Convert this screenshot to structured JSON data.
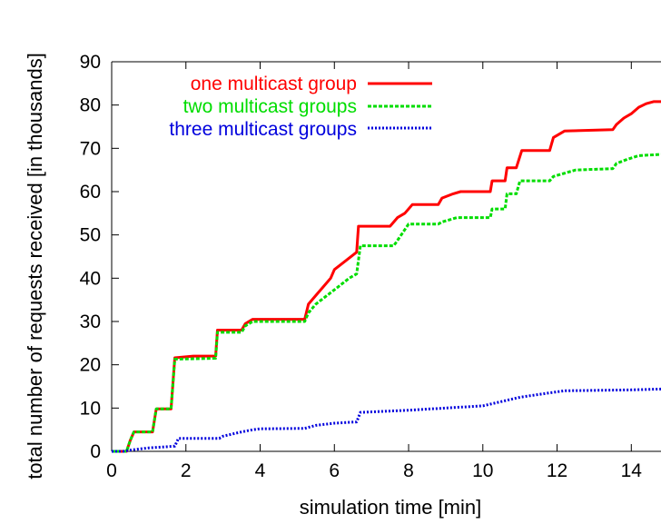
{
  "chart_data": {
    "type": "line",
    "title": "",
    "xlabel": "simulation time [min]",
    "ylabel": "total number of requests received [in thousands]",
    "xlim": [
      0,
      14.8
    ],
    "ylim": [
      0,
      90
    ],
    "xticks": [
      0,
      2,
      4,
      6,
      8,
      10,
      12,
      14
    ],
    "yticks": [
      0,
      10,
      20,
      30,
      40,
      50,
      60,
      70,
      80,
      90
    ],
    "grid": false,
    "legend_position": "top-left",
    "series": [
      {
        "name": "one multicast group",
        "color": "#ff0000",
        "style": "solid",
        "points": [
          [
            0,
            0
          ],
          [
            0.4,
            0
          ],
          [
            0.5,
            2.5
          ],
          [
            0.6,
            4.5
          ],
          [
            1.1,
            4.5
          ],
          [
            1.2,
            9.8
          ],
          [
            1.6,
            9.8
          ],
          [
            1.7,
            21.6
          ],
          [
            1.8,
            21.7
          ],
          [
            2.2,
            22
          ],
          [
            2.8,
            22
          ],
          [
            2.85,
            28
          ],
          [
            3.5,
            28
          ],
          [
            3.6,
            29.5
          ],
          [
            3.8,
            30.5
          ],
          [
            5.2,
            30.5
          ],
          [
            5.3,
            34
          ],
          [
            5.5,
            36
          ],
          [
            5.7,
            38
          ],
          [
            5.9,
            40
          ],
          [
            6.0,
            42
          ],
          [
            6.3,
            44
          ],
          [
            6.6,
            46
          ],
          [
            6.65,
            52
          ],
          [
            7.5,
            52
          ],
          [
            7.7,
            54
          ],
          [
            7.9,
            55
          ],
          [
            8.1,
            57
          ],
          [
            8.8,
            57
          ],
          [
            8.9,
            58.5
          ],
          [
            9.2,
            59.5
          ],
          [
            9.4,
            60
          ],
          [
            10.2,
            60
          ],
          [
            10.25,
            62.5
          ],
          [
            10.6,
            62.5
          ],
          [
            10.65,
            65.5
          ],
          [
            10.9,
            65.5
          ],
          [
            11.05,
            69.5
          ],
          [
            11.8,
            69.5
          ],
          [
            11.9,
            72.5
          ],
          [
            12.2,
            74
          ],
          [
            13.5,
            74.3
          ],
          [
            13.6,
            75.5
          ],
          [
            13.8,
            77
          ],
          [
            14.0,
            78
          ],
          [
            14.2,
            79.5
          ],
          [
            14.4,
            80.3
          ],
          [
            14.6,
            80.8
          ],
          [
            14.8,
            80.8
          ]
        ]
      },
      {
        "name": "two multicast groups",
        "color": "#00dd00",
        "style": "dashed",
        "points": [
          [
            0,
            0
          ],
          [
            0.4,
            0
          ],
          [
            0.5,
            2.5
          ],
          [
            0.6,
            4.5
          ],
          [
            1.1,
            4.5
          ],
          [
            1.2,
            9.8
          ],
          [
            1.6,
            9.8
          ],
          [
            1.7,
            21.3
          ],
          [
            2.8,
            21.5
          ],
          [
            2.85,
            27.5
          ],
          [
            3.5,
            27.5
          ],
          [
            3.6,
            29
          ],
          [
            3.8,
            30
          ],
          [
            5.2,
            30
          ],
          [
            5.3,
            32
          ],
          [
            5.5,
            34
          ],
          [
            5.8,
            36
          ],
          [
            6.1,
            38
          ],
          [
            6.4,
            40
          ],
          [
            6.6,
            41
          ],
          [
            6.7,
            47.5
          ],
          [
            7.6,
            47.5
          ],
          [
            7.8,
            50
          ],
          [
            8.0,
            52.5
          ],
          [
            8.8,
            52.5
          ],
          [
            8.9,
            53
          ],
          [
            9.3,
            54
          ],
          [
            10.2,
            54
          ],
          [
            10.25,
            56
          ],
          [
            10.6,
            56
          ],
          [
            10.65,
            59.5
          ],
          [
            10.9,
            59.5
          ],
          [
            11.0,
            62.5
          ],
          [
            11.8,
            62.5
          ],
          [
            11.9,
            63.5
          ],
          [
            12.5,
            65
          ],
          [
            13.5,
            65.3
          ],
          [
            13.6,
            66.5
          ],
          [
            13.9,
            67.5
          ],
          [
            14.2,
            68.3
          ],
          [
            14.8,
            68.6
          ]
        ]
      },
      {
        "name": "three multicast groups",
        "color": "#0000dd",
        "style": "dotted",
        "points": [
          [
            0,
            0
          ],
          [
            0.3,
            0
          ],
          [
            0.5,
            0.3
          ],
          [
            1.0,
            0.8
          ],
          [
            1.7,
            1.2
          ],
          [
            1.8,
            3
          ],
          [
            2.9,
            3
          ],
          [
            3.0,
            3.5
          ],
          [
            3.5,
            4.5
          ],
          [
            3.8,
            5
          ],
          [
            4.0,
            5.2
          ],
          [
            5.2,
            5.3
          ],
          [
            5.5,
            6
          ],
          [
            6.0,
            6.5
          ],
          [
            6.6,
            6.8
          ],
          [
            6.7,
            9
          ],
          [
            8.0,
            9.5
          ],
          [
            9.0,
            10
          ],
          [
            10.0,
            10.5
          ],
          [
            10.5,
            11.5
          ],
          [
            11.0,
            12.5
          ],
          [
            11.8,
            13.5
          ],
          [
            12.2,
            14
          ],
          [
            14.0,
            14.2
          ],
          [
            14.8,
            14.4
          ]
        ]
      }
    ]
  }
}
